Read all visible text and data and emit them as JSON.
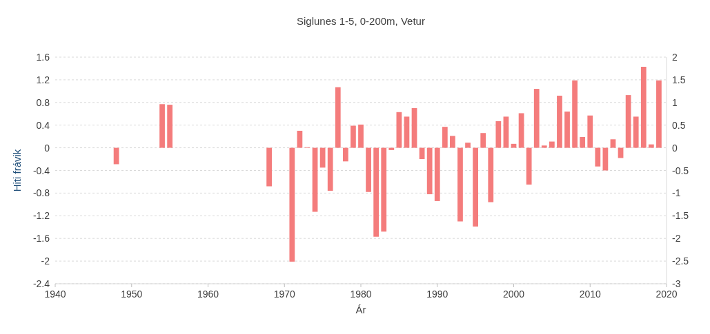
{
  "chart_data": {
    "type": "bar",
    "title": "Siglunes 1-5, 0-200m, Vetur",
    "xlabel": "Ár",
    "ylabel": "Hiti frávik",
    "x": [
      1948,
      1954,
      1955,
      1968,
      1971,
      1972,
      1973,
      1974,
      1975,
      1976,
      1977,
      1978,
      1979,
      1980,
      1981,
      1982,
      1983,
      1984,
      1985,
      1986,
      1987,
      1988,
      1989,
      1990,
      1991,
      1992,
      1993,
      1994,
      1995,
      1996,
      1997,
      1998,
      1999,
      2000,
      2001,
      2002,
      2003,
      2004,
      2005,
      2006,
      2007,
      2008,
      2009,
      2010,
      2011,
      2012,
      2013,
      2014,
      2015,
      2016,
      2017,
      2018,
      2019
    ],
    "values": [
      -0.29,
      0.77,
      0.76,
      -0.68,
      -2.01,
      0.3,
      0.01,
      -1.13,
      -0.35,
      -0.76,
      1.07,
      -0.24,
      0.39,
      0.41,
      -0.78,
      -1.57,
      -1.48,
      -0.04,
      0.63,
      0.55,
      0.7,
      -0.2,
      -0.82,
      -0.94,
      0.37,
      0.21,
      -1.3,
      0.09,
      -1.39,
      0.26,
      -0.96,
      0.47,
      0.55,
      0.07,
      0.61,
      -0.65,
      1.04,
      0.04,
      0.11,
      0.92,
      0.64,
      1.19,
      0.19,
      0.57,
      -0.33,
      -0.4,
      0.15,
      -0.18,
      0.93,
      0.55,
      1.43,
      0.06,
      1.19
    ],
    "color": "#f47c7c",
    "xlim": [
      1940,
      2020
    ],
    "xticks": [
      1940,
      1950,
      1960,
      1970,
      1980,
      1990,
      2000,
      2010,
      2020
    ],
    "ylim": [
      -2.4,
      1.6
    ],
    "yticks": [
      -2.4,
      -2,
      -1.6,
      -1.2,
      -0.8,
      -0.4,
      0,
      0.4,
      0.8,
      1.2,
      1.6
    ],
    "y2lim": [
      -3,
      2
    ],
    "y2ticks": [
      -3,
      -2.5,
      -2,
      -1.5,
      -1,
      -0.5,
      0,
      0.5,
      1,
      1.5,
      2
    ],
    "grid": "y"
  }
}
